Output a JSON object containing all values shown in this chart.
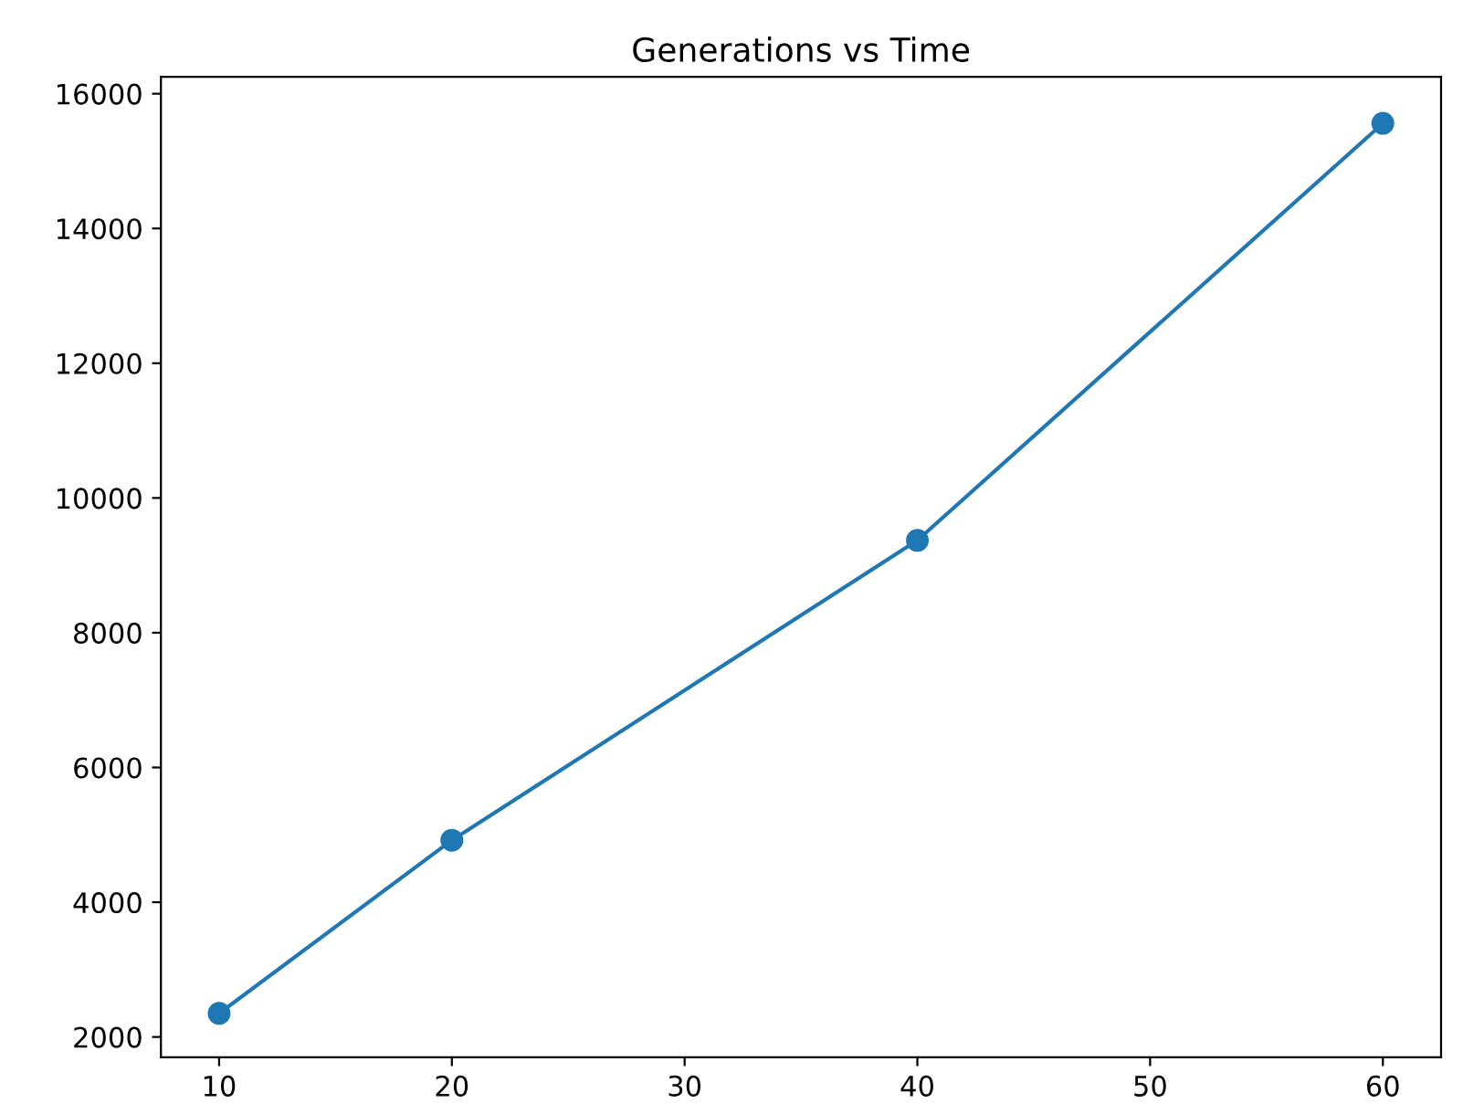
{
  "chart_data": {
    "type": "line",
    "title": "Generations vs Time",
    "x": [
      10,
      20,
      40,
      60
    ],
    "series": [
      {
        "color": "#1f77b4",
        "values": [
          2350,
          4920,
          9370,
          15560
        ]
      }
    ],
    "xlim": [
      7.5,
      62.5
    ],
    "xticks": [
      10,
      20,
      30,
      40,
      50,
      60
    ],
    "ylim": [
      1700,
      16250
    ],
    "yticks": [
      2000,
      4000,
      6000,
      8000,
      10000,
      12000,
      14000,
      16000
    ],
    "marker": "circle",
    "line_style": "solid",
    "grid": false
  }
}
